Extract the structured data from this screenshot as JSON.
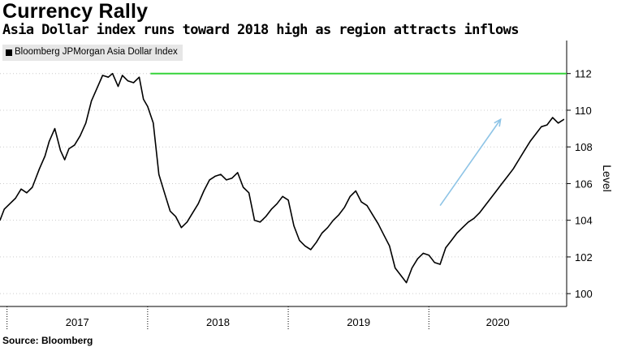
{
  "header": {
    "title": "Currency Rally",
    "subtitle": "Asia Dollar index runs toward 2018 high as region attracts inflows"
  },
  "footer": {
    "source": "Source: Bloomberg"
  },
  "colors": {
    "series": "#000000",
    "highline": "#35d43a",
    "arrow": "#8ec4e6",
    "legend_bg": "#e6e6e6",
    "grid": "#cccccc"
  },
  "chart_data": {
    "type": "line",
    "title": "Currency Rally",
    "subtitle": "Asia Dollar index runs toward 2018 high as region attracts inflows",
    "ylabel": "Level",
    "xlabel": "",
    "ylim": [
      99.3,
      113.8
    ],
    "yticks": [
      100,
      102,
      104,
      106,
      108,
      110,
      112
    ],
    "xlim": [
      2016.95,
      2020.98
    ],
    "xticks": [
      2017,
      2018,
      2019,
      2020
    ],
    "xtick_labels": [
      "2017",
      "2018",
      "2019",
      "2020"
    ],
    "grid": true,
    "legend": {
      "position": "top-left",
      "entries": [
        "Bloomberg JPMorgan Asia Dollar Index"
      ]
    },
    "series": [
      {
        "name": "Bloomberg JPMorgan Asia Dollar Index",
        "color": "#000000",
        "x": [
          2016.95,
          2016.98,
          2017.02,
          2017.06,
          2017.1,
          2017.14,
          2017.18,
          2017.2,
          2017.23,
          2017.27,
          2017.3,
          2017.34,
          2017.38,
          2017.41,
          2017.44,
          2017.48,
          2017.52,
          2017.56,
          2017.6,
          2017.64,
          2017.68,
          2017.72,
          2017.75,
          2017.79,
          2017.82,
          2017.86,
          2017.9,
          2017.94,
          2017.97,
          2018.0,
          2018.04,
          2018.08,
          2018.12,
          2018.16,
          2018.2,
          2018.24,
          2018.28,
          2018.32,
          2018.36,
          2018.4,
          2018.44,
          2018.48,
          2018.52,
          2018.56,
          2018.6,
          2018.64,
          2018.68,
          2018.72,
          2018.76,
          2018.8,
          2018.84,
          2018.88,
          2018.92,
          2018.96,
          2019.0,
          2019.04,
          2019.08,
          2019.12,
          2019.16,
          2019.2,
          2019.24,
          2019.28,
          2019.32,
          2019.36,
          2019.4,
          2019.44,
          2019.48,
          2019.52,
          2019.56,
          2019.6,
          2019.64,
          2019.68,
          2019.72,
          2019.76,
          2019.8,
          2019.84,
          2019.88,
          2019.92,
          2019.96,
          2020.0,
          2020.04,
          2020.08,
          2020.12,
          2020.16,
          2020.2,
          2020.24,
          2020.28,
          2020.32,
          2020.36,
          2020.4,
          2020.44,
          2020.48,
          2020.52,
          2020.56,
          2020.6,
          2020.64,
          2020.68,
          2020.72,
          2020.76,
          2020.8,
          2020.84,
          2020.88,
          2020.92,
          2020.96
        ],
        "values": [
          104.0,
          104.6,
          104.9,
          105.2,
          105.7,
          105.5,
          105.8,
          106.2,
          106.8,
          107.5,
          108.3,
          109.0,
          107.8,
          107.3,
          107.9,
          108.1,
          108.6,
          109.3,
          110.5,
          111.2,
          111.9,
          111.8,
          112.0,
          111.3,
          111.9,
          111.6,
          111.5,
          111.8,
          110.6,
          110.2,
          109.3,
          106.5,
          105.5,
          104.5,
          104.2,
          103.6,
          103.9,
          104.4,
          104.9,
          105.6,
          106.2,
          106.4,
          106.5,
          106.2,
          106.3,
          106.6,
          105.8,
          105.5,
          104.0,
          103.9,
          104.2,
          104.6,
          104.9,
          105.3,
          105.1,
          103.7,
          102.9,
          102.6,
          102.4,
          102.8,
          103.3,
          103.6,
          104.0,
          104.3,
          104.7,
          105.3,
          105.6,
          105.0,
          104.8,
          104.3,
          103.8,
          103.2,
          102.6,
          101.4,
          101.0,
          100.6,
          101.4,
          101.9,
          102.2,
          102.1,
          101.7,
          101.6,
          102.5,
          102.9,
          103.3,
          103.6,
          103.9,
          104.1,
          104.4,
          104.8,
          105.2,
          105.6,
          106.0,
          106.4,
          106.8,
          107.3,
          107.8,
          108.3,
          108.7,
          109.1,
          109.2,
          109.6,
          109.3,
          109.5
        ]
      }
    ],
    "reference_lines": [
      {
        "type": "horizontal",
        "value": 112,
        "x_from": 2018.02,
        "x_to": 2020.98,
        "color": "#35d43a"
      }
    ],
    "annotations": [
      {
        "type": "arrow",
        "from": [
          2020.08,
          104.8
        ],
        "to": [
          2020.51,
          109.5
        ],
        "color": "#8ec4e6"
      }
    ]
  }
}
